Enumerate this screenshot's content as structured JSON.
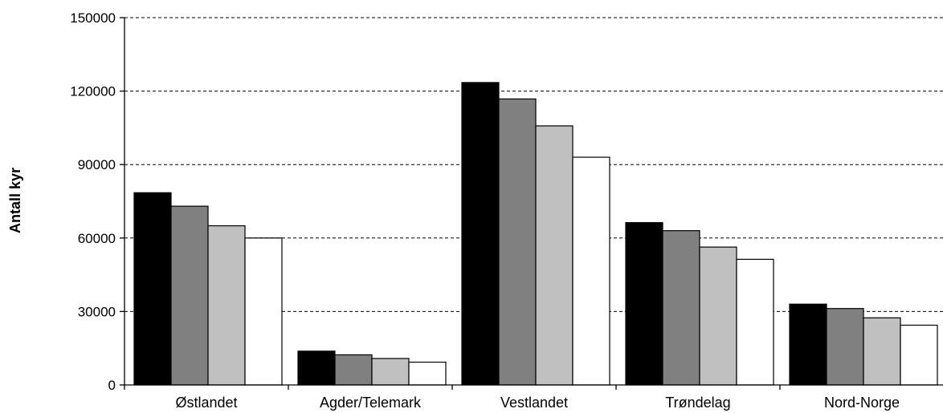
{
  "chart_data": {
    "type": "bar",
    "title": "",
    "xlabel": "",
    "ylabel": "Antall kyr",
    "ylim": [
      0,
      150000
    ],
    "yticks": [
      0,
      30000,
      60000,
      90000,
      120000,
      150000
    ],
    "ytick_labels": [
      "0",
      "30000",
      "60000",
      "90000",
      "120000",
      "150000"
    ],
    "grid": "horizontal-dashed",
    "legend": "none",
    "categories": [
      "Østlandet",
      "Agder/Telemark",
      "Vestlandet",
      "Trøndelag",
      "Nord-Norge"
    ],
    "series": [
      {
        "color": "#000000",
        "values": [
          78500,
          13800,
          123500,
          66300,
          33000
        ]
      },
      {
        "color": "#808080",
        "values": [
          73000,
          12300,
          116800,
          63000,
          31200
        ]
      },
      {
        "color": "#c0c0c0",
        "values": [
          65000,
          10800,
          105800,
          56300,
          27400
        ]
      },
      {
        "color": "#ffffff",
        "values": [
          60000,
          9300,
          93000,
          51300,
          24400
        ]
      }
    ]
  }
}
